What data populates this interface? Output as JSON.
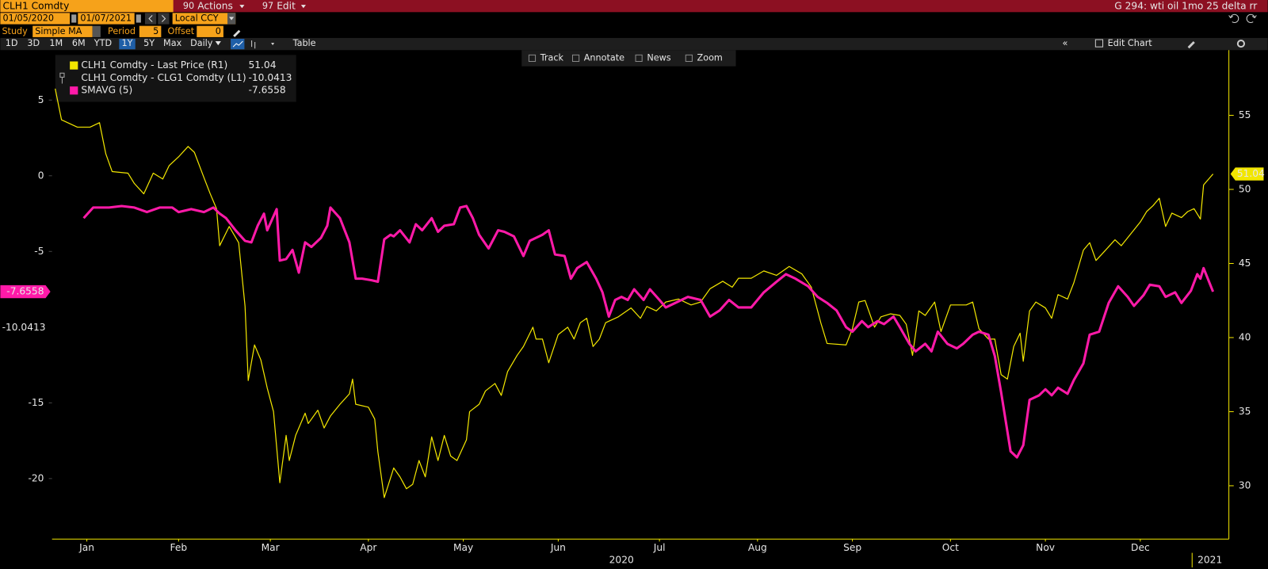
{
  "toolbar": {
    "security": "CLH1 Comdty",
    "actions_code": "90",
    "actions": "Actions",
    "edit_code": "97",
    "edit": "Edit",
    "page_title": "G 294: wti oil 1mo 25 delta rr",
    "start_date": "01/05/2020",
    "end_date": "01/07/2021",
    "currency": "Local CCY",
    "study_label": "Study",
    "study": "Simple MA",
    "period_label": "Period",
    "period": "5",
    "offset_label": "Offset",
    "offset": "0",
    "ranges": [
      "1D",
      "3D",
      "1M",
      "6M",
      "YTD",
      "1Y",
      "5Y",
      "Max"
    ],
    "active_range_index": 5,
    "frequency": "Daily",
    "table": "Table",
    "edit_chart": "Edit Chart",
    "chart_tools": [
      "Track",
      "Annotate",
      "News",
      "Zoom"
    ]
  },
  "chart_data": {
    "type": "line",
    "xlim": [
      4,
      376
    ],
    "xticks": [
      {
        "value": 15,
        "label": "Jan"
      },
      {
        "value": 44,
        "label": "Feb"
      },
      {
        "value": 73,
        "label": "Mar"
      },
      {
        "value": 104,
        "label": "Apr"
      },
      {
        "value": 134,
        "label": "May"
      },
      {
        "value": 164,
        "label": "Jun"
      },
      {
        "value": 196,
        "label": "Jul"
      },
      {
        "value": 227,
        "label": "Aug"
      },
      {
        "value": 257,
        "label": "Sep"
      },
      {
        "value": 288,
        "label": "Oct"
      },
      {
        "value": 318,
        "label": "Nov"
      },
      {
        "value": 348,
        "label": "Dec"
      }
    ],
    "xyears": [
      {
        "value": 184,
        "label": "2020"
      },
      {
        "value": 370,
        "label": "2021"
      }
    ],
    "ylim": [
      -24,
      8.3
    ],
    "yticks": [
      -20,
      -15,
      -5,
      0,
      5
    ],
    "y2lim": [
      26.4,
      59.4
    ],
    "y2ticks": [
      30,
      35,
      40,
      45,
      50,
      55
    ],
    "series": [
      {
        "name": "CLH1 Comdty - Last Price (R1)",
        "color": "#f2e600",
        "axis": "y2",
        "x": [
          5,
          7,
          12,
          16,
          19,
          21,
          23,
          28,
          30,
          33,
          36,
          39,
          41,
          44,
          47,
          49,
          52,
          54,
          56,
          57,
          60,
          63,
          65,
          66,
          68,
          70,
          72,
          74,
          76,
          78,
          79,
          81,
          84,
          85,
          88,
          90,
          92,
          95,
          98,
          99,
          100,
          104,
          106,
          107,
          109,
          112,
          114,
          116,
          118,
          120,
          122,
          124,
          126,
          128,
          130,
          132,
          135,
          136,
          139,
          141,
          144,
          146,
          148,
          151,
          153,
          156,
          157,
          159,
          161,
          164,
          167,
          169,
          171,
          173,
          175,
          177,
          179,
          183,
          187,
          190,
          192,
          195,
          198,
          202,
          206,
          209,
          212,
          216,
          219,
          221,
          225,
          229,
          233,
          237,
          241,
          244,
          247,
          249,
          255,
          257,
          259,
          261,
          264,
          266,
          269,
          272,
          274,
          276,
          278,
          280,
          283,
          285,
          288,
          293,
          295,
          297,
          300,
          302,
          304,
          306,
          308,
          310,
          311,
          313,
          315,
          318,
          320,
          322,
          325,
          327,
          330,
          332,
          334,
          337,
          340,
          342,
          345,
          348,
          350,
          352,
          354,
          356,
          358,
          361,
          363,
          365,
          367,
          368,
          371
        ],
        "values": [
          56.8,
          54.7,
          54.2,
          54.2,
          54.5,
          52.4,
          51.2,
          51.1,
          50.4,
          49.7,
          51.1,
          50.7,
          51.6,
          52.2,
          52.9,
          52.5,
          50.8,
          49.7,
          48.7,
          46.2,
          47.5,
          46.4,
          42.1,
          37.1,
          39.5,
          38.5,
          36.6,
          35.0,
          30.2,
          33.4,
          31.7,
          33.4,
          34.9,
          34.2,
          35.1,
          33.9,
          34.7,
          35.5,
          36.2,
          37.2,
          35.5,
          35.3,
          34.5,
          32.3,
          29.2,
          31.2,
          30.6,
          29.8,
          30.1,
          31.7,
          30.6,
          33.3,
          31.7,
          33.4,
          32.0,
          31.7,
          33.1,
          35.0,
          35.5,
          36.4,
          36.9,
          36.1,
          37.7,
          38.8,
          39.4,
          40.7,
          39.9,
          39.9,
          38.3,
          40.2,
          40.7,
          39.9,
          41.0,
          41.3,
          39.4,
          39.9,
          41.0,
          41.4,
          42.0,
          41.3,
          42.1,
          41.8,
          42.4,
          42.6,
          42.2,
          42.4,
          43.3,
          43.8,
          43.4,
          44.0,
          44.0,
          44.5,
          44.2,
          44.8,
          44.3,
          43.4,
          41.0,
          39.6,
          39.5,
          40.6,
          42.4,
          42.5,
          40.7,
          41.4,
          41.6,
          41.5,
          40.9,
          38.8,
          41.8,
          41.5,
          42.4,
          40.4,
          42.2,
          42.2,
          42.4,
          40.6,
          39.9,
          39.9,
          37.5,
          37.2,
          39.4,
          40.3,
          38.4,
          41.8,
          42.4,
          42.0,
          41.3,
          42.9,
          42.6,
          43.7,
          45.9,
          46.4,
          45.2,
          45.9,
          46.6,
          46.2,
          47.0,
          47.8,
          48.5,
          48.9,
          49.4,
          47.5,
          48.4,
          48.1,
          48.5,
          48.7,
          48.0,
          50.3,
          51.04
        ]
      },
      {
        "name": "CLH1 Comdty - CLG1 Comdty (L1)",
        "color": "#ffffff",
        "axis": "y",
        "last": -10.0413
      },
      {
        "name": "SMAVG (5)",
        "color": "#ff1aa8",
        "axis": "y",
        "x": [
          14,
          17,
          22,
          26,
          30,
          34,
          38,
          42,
          44,
          48,
          52,
          55,
          57,
          59,
          62,
          65,
          67,
          69,
          71,
          72,
          75,
          76,
          78,
          80,
          82,
          84,
          86,
          89,
          91,
          92,
          95,
          98,
          100,
          102,
          105,
          107,
          109,
          111,
          112,
          114,
          117,
          119,
          121,
          124,
          126,
          128,
          131,
          133,
          135,
          137,
          139,
          142,
          145,
          147,
          150,
          153,
          155,
          159,
          161,
          163,
          166,
          168,
          170,
          173,
          176,
          178,
          180,
          182,
          184,
          186,
          188,
          191,
          193,
          196,
          198,
          202,
          205,
          209,
          212,
          215,
          218,
          221,
          225,
          229,
          233,
          236,
          239,
          243,
          246,
          249,
          252,
          255,
          257,
          260,
          262,
          265,
          267,
          270,
          272,
          275,
          277,
          280,
          282,
          284,
          287,
          290,
          292,
          295,
          297,
          300,
          302,
          304,
          307,
          309,
          311,
          313,
          316,
          318,
          320,
          322,
          325,
          327,
          330,
          332,
          335,
          338,
          341,
          344,
          346,
          349,
          351,
          354,
          356,
          359,
          361,
          364,
          366,
          367,
          368,
          371
        ],
        "values": [
          -2.8,
          -2.1,
          -2.1,
          -2.0,
          -2.1,
          -2.4,
          -2.1,
          -2.1,
          -2.4,
          -2.2,
          -2.4,
          -2.1,
          -2.5,
          -2.8,
          -3.6,
          -4.3,
          -4.4,
          -3.3,
          -2.5,
          -3.6,
          -2.2,
          -5.6,
          -5.5,
          -4.9,
          -6.4,
          -4.4,
          -4.7,
          -4.1,
          -3.3,
          -2.1,
          -2.8,
          -4.4,
          -6.8,
          -6.8,
          -6.9,
          -7.0,
          -4.2,
          -3.9,
          -4.0,
          -3.6,
          -4.4,
          -3.2,
          -3.6,
          -2.8,
          -3.7,
          -3.3,
          -3.2,
          -2.1,
          -2.0,
          -2.8,
          -3.9,
          -4.8,
          -3.6,
          -3.7,
          -4.0,
          -5.3,
          -4.3,
          -3.9,
          -3.6,
          -5.2,
          -5.3,
          -6.8,
          -6.1,
          -5.7,
          -6.8,
          -7.7,
          -9.3,
          -8.2,
          -8.0,
          -8.2,
          -7.5,
          -8.2,
          -7.5,
          -8.2,
          -8.7,
          -8.3,
          -8.0,
          -8.2,
          -9.3,
          -8.9,
          -8.2,
          -8.7,
          -8.7,
          -7.7,
          -7.0,
          -6.5,
          -6.8,
          -7.3,
          -8.0,
          -8.4,
          -8.9,
          -10.0,
          -10.3,
          -9.6,
          -10.0,
          -9.6,
          -9.8,
          -9.3,
          -10.0,
          -11.1,
          -11.6,
          -11.1,
          -11.6,
          -10.3,
          -11.1,
          -11.4,
          -11.1,
          -10.5,
          -10.3,
          -10.5,
          -11.9,
          -14.3,
          -18.2,
          -18.6,
          -17.8,
          -14.8,
          -14.5,
          -14.1,
          -14.5,
          -14.0,
          -14.4,
          -13.5,
          -12.4,
          -10.5,
          -10.3,
          -8.4,
          -7.3,
          -8.0,
          -8.6,
          -7.9,
          -7.2,
          -7.3,
          -8.0,
          -7.7,
          -8.4,
          -7.6,
          -6.5,
          -6.8,
          -6.1,
          -7.6558
        ]
      }
    ]
  }
}
